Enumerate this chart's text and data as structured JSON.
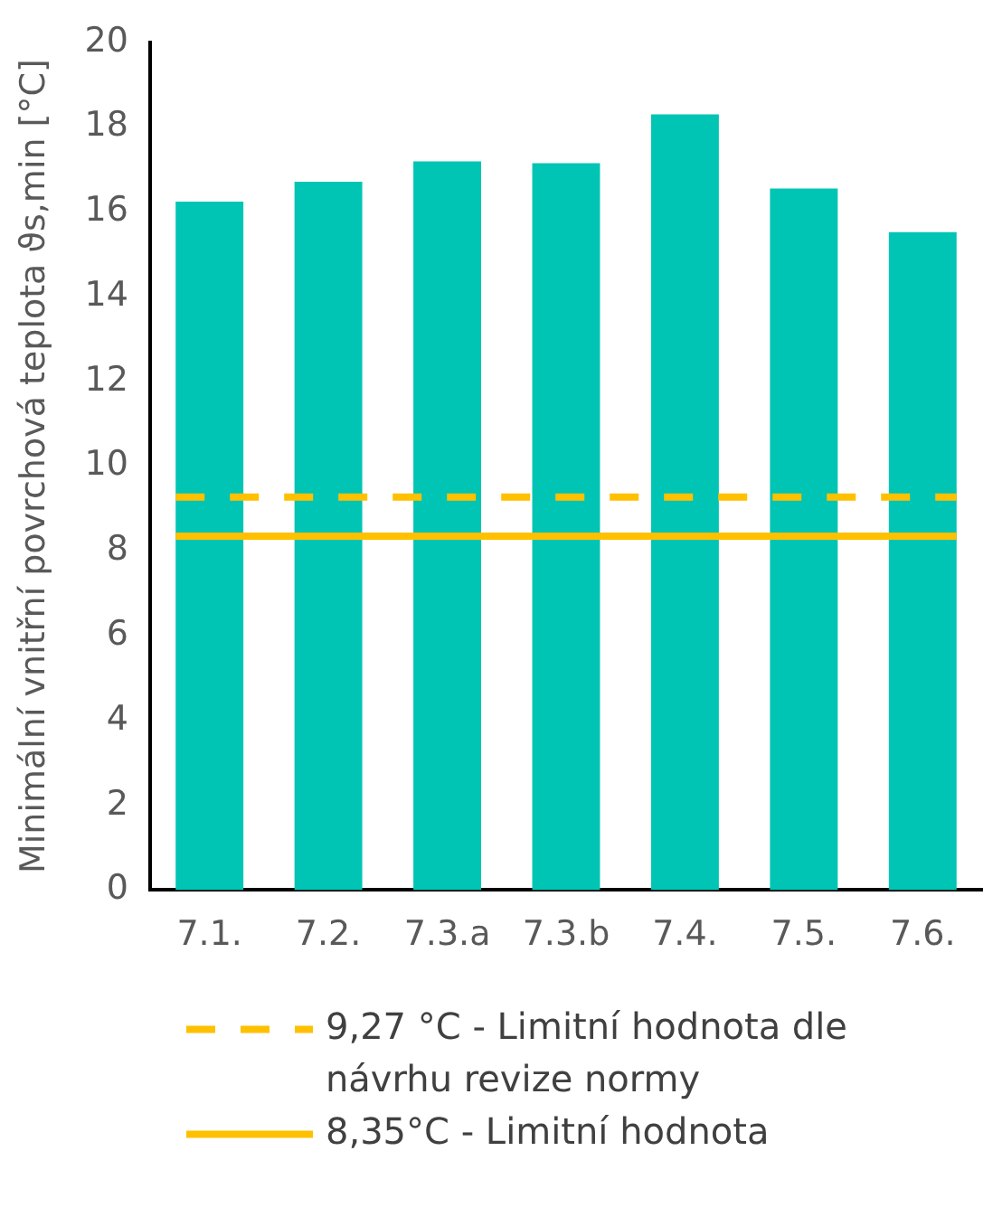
{
  "chart_data": {
    "type": "bar",
    "ylabel": "Minimální vnitřní povrchová teplota ϑs,min [°C]",
    "categories": [
      "7.1.",
      "7.2.",
      "7.3.a",
      "7.3.b",
      "7.4.",
      "7.5.",
      "7.6."
    ],
    "values": [
      16.24,
      16.71,
      17.19,
      17.15,
      18.3,
      16.55,
      15.52
    ],
    "color": "#00c4b4",
    "ylim": [
      0,
      20
    ],
    "yticks": [
      0,
      2,
      4,
      6,
      8,
      10,
      12,
      14,
      16,
      18,
      20
    ],
    "grid": false,
    "legend": "bottom",
    "ref_lines": [
      {
        "axis": "y",
        "value": 9.27,
        "label": "9,27 °C - Limitní hodnota dle návrhu revize normy",
        "color": "#ffc000",
        "line_style": "dashed"
      },
      {
        "axis": "y",
        "value": 8.35,
        "label": "8,35°C - Limitní hodnota",
        "color": "#ffc000",
        "line_style": "solid"
      }
    ]
  }
}
